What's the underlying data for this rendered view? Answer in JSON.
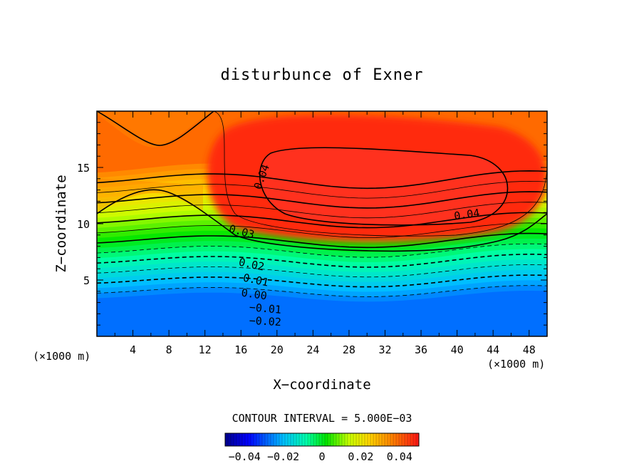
{
  "chart_data": {
    "type": "contour",
    "title": "disturbunce of Exner",
    "xlabel": "X−coordinate",
    "ylabel": "Z−coordinate",
    "x_unit_left": "(×1000 m)",
    "x_unit_right": "(×1000 m)",
    "xlim": [
      0,
      50
    ],
    "ylim": [
      0,
      20
    ],
    "x_ticks": [
      4,
      8,
      12,
      16,
      20,
      24,
      28,
      32,
      36,
      40,
      44,
      48
    ],
    "y_ticks": [
      5,
      10,
      15
    ],
    "contour_interval_text": "CONTOUR INTERVAL = 5.000E−03",
    "contour_levels": [
      -0.025,
      -0.02,
      -0.015,
      -0.01,
      -0.005,
      0.0,
      0.005,
      0.01,
      0.015,
      0.02,
      0.025,
      0.03,
      0.035,
      0.04
    ],
    "labeled_contours": [
      "0.04",
      "0.04",
      "0.03",
      "0.02",
      "0.01",
      "0.00",
      "−0.01",
      "−0.02"
    ],
    "colorbar": {
      "range": [
        -0.05,
        0.05
      ],
      "tick_labels": [
        "−0.04",
        "−0.02",
        "0",
        "0.02",
        "0.04"
      ],
      "tick_values": [
        -0.04,
        -0.02,
        0,
        0.02,
        0.04
      ]
    },
    "field_summary": {
      "max_value_approx": 0.045,
      "max_region": "x 20–44, z 11–16",
      "min_value_approx": -0.03,
      "min_region": "near z = 0"
    }
  }
}
